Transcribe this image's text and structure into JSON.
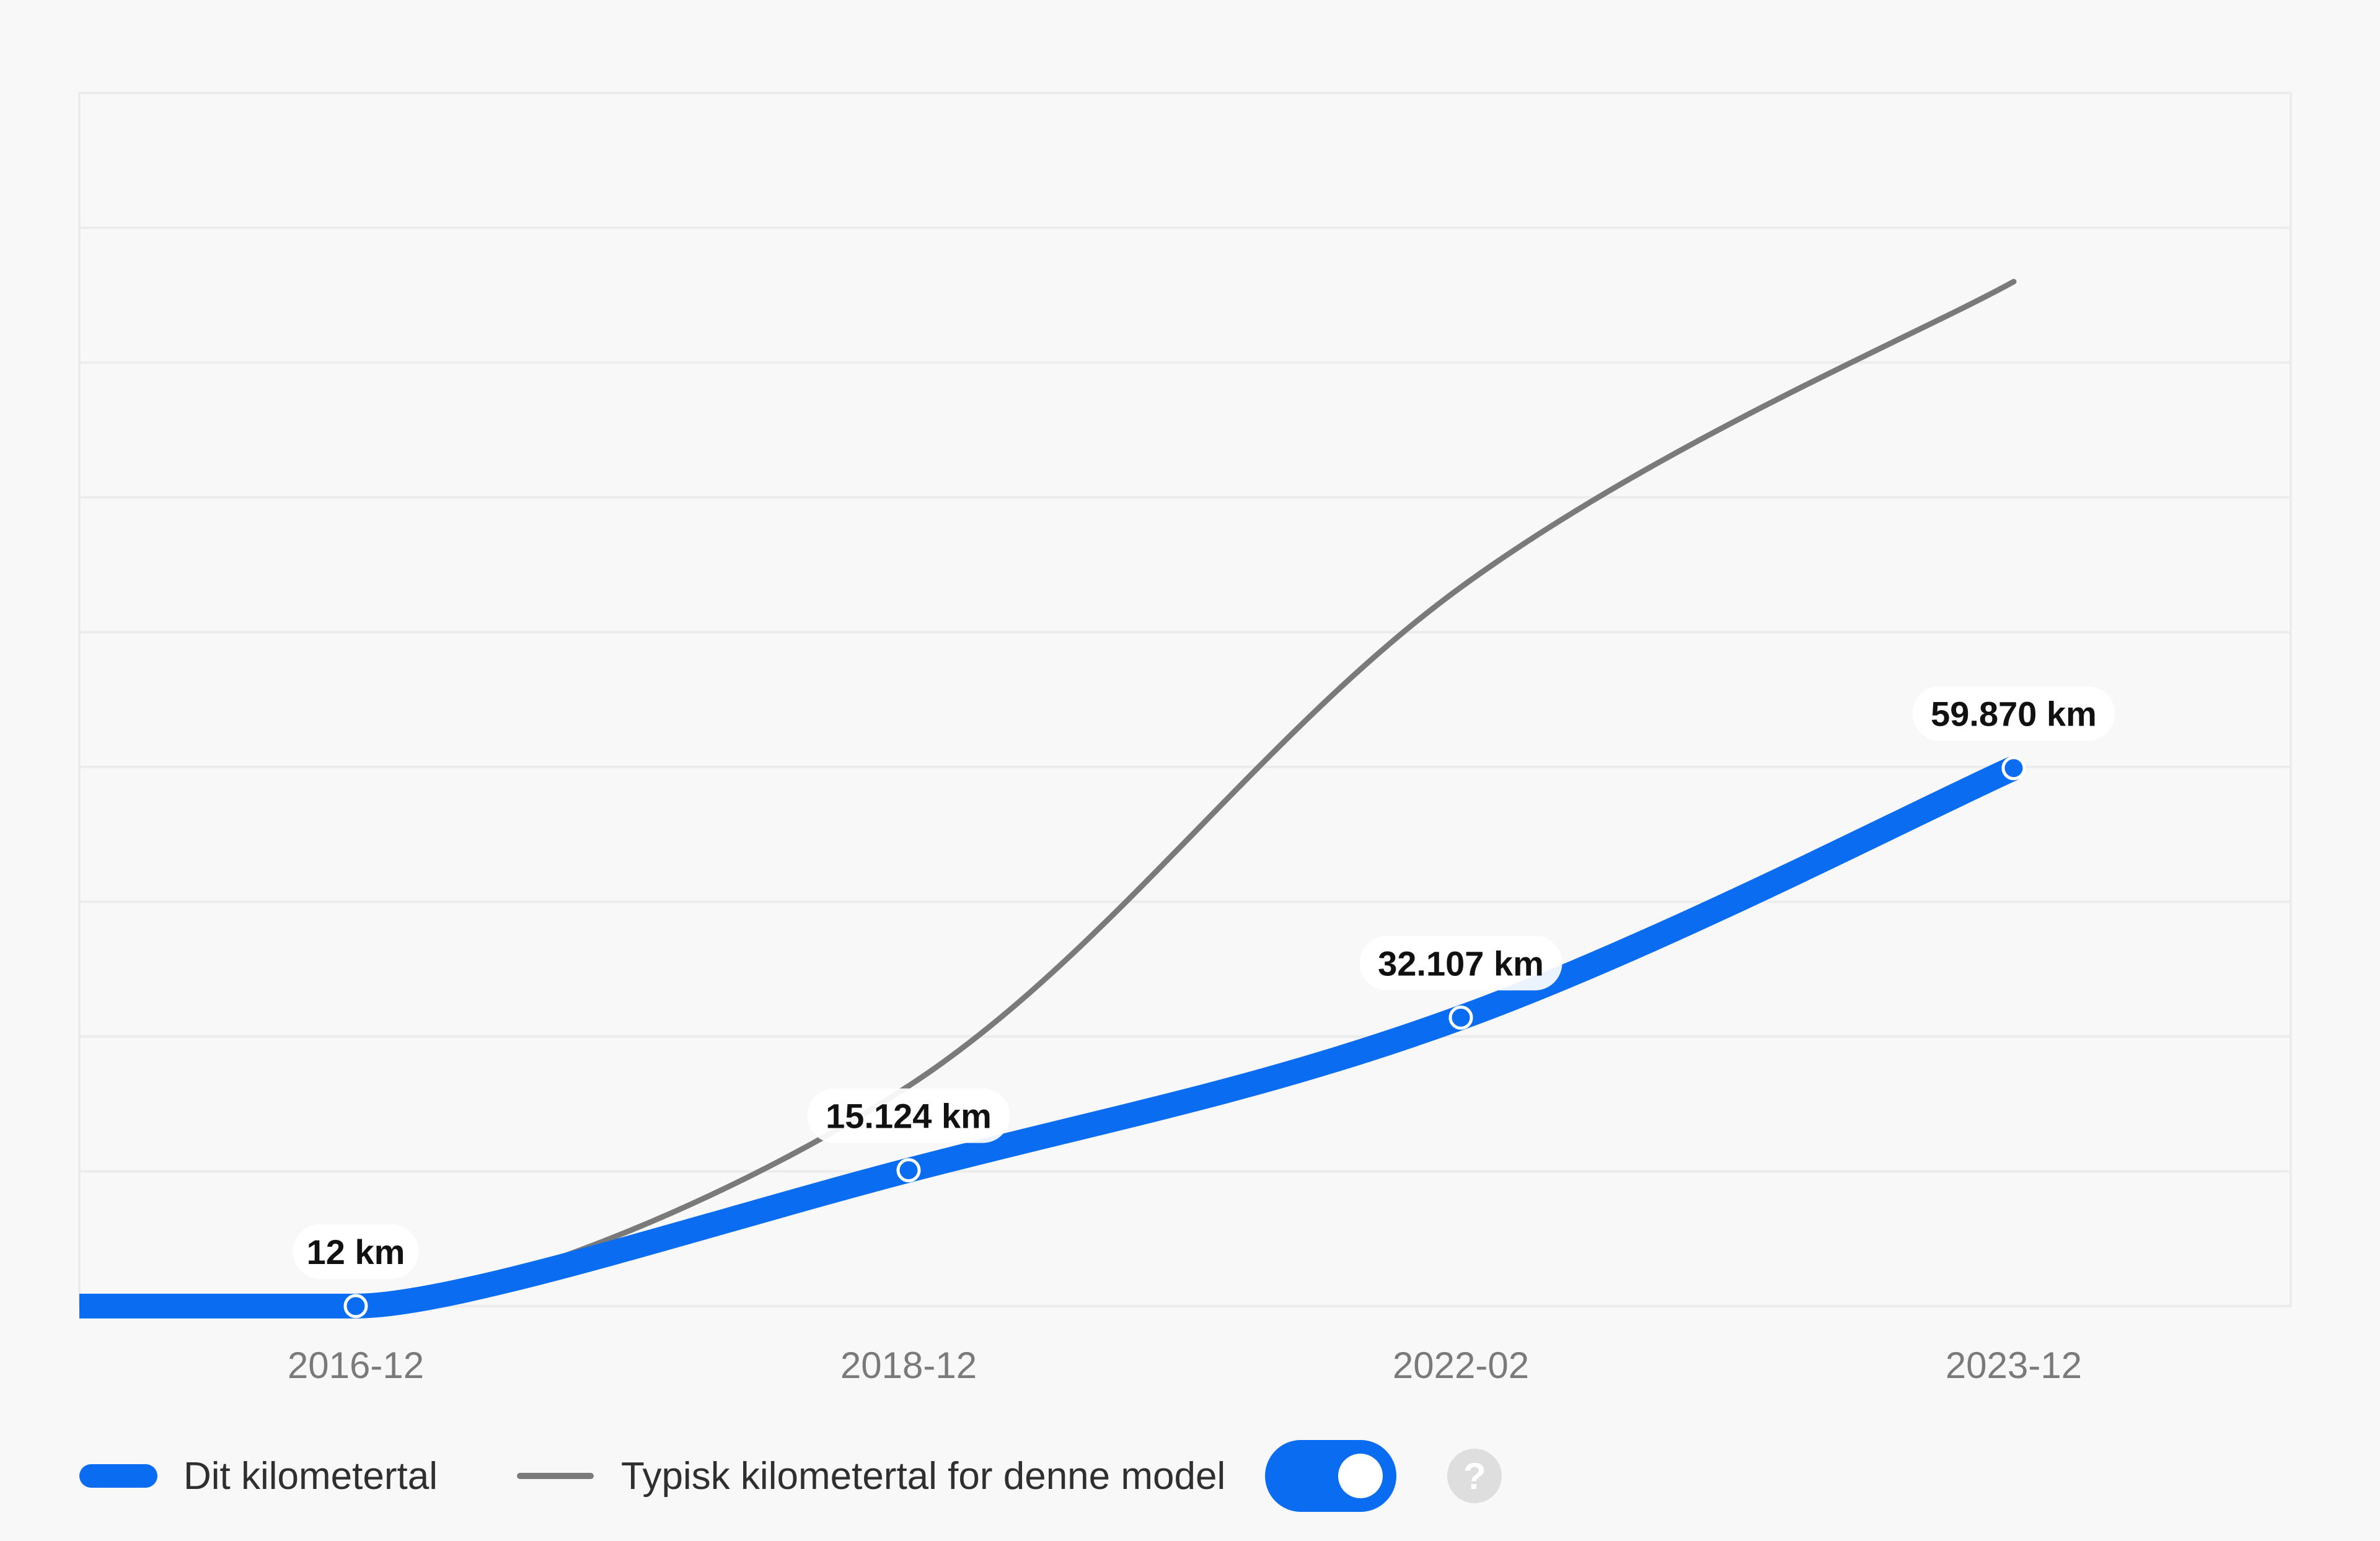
{
  "chart_data": {
    "type": "line",
    "categories": [
      "2016-12",
      "2018-12",
      "2022-02",
      "2023-12"
    ],
    "series": [
      {
        "name": "Dit kilometertal",
        "values": [
          12,
          15124,
          32107,
          59870
        ],
        "data_labels": [
          "12 km",
          "15.124 km",
          "32.107 km",
          "59.870 km"
        ],
        "color": "#0a6cf0"
      },
      {
        "name": "Typisk kilometertal for denne model",
        "values": [
          12,
          24500,
          80000,
          114000
        ],
        "color": "#7a7a7a"
      }
    ],
    "ylim": [
      0,
      135000
    ],
    "grid": true,
    "legend": "bottom-left"
  },
  "legend": {
    "items": [
      "Dit kilometertal",
      "Typisk kilometertal for denne model"
    ],
    "toggle_on": true,
    "help_icon": "?"
  }
}
